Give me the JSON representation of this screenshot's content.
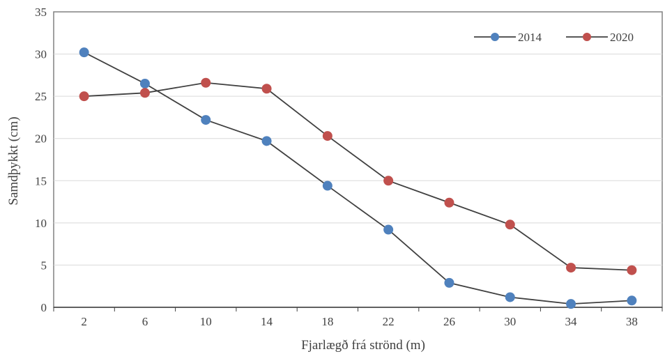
{
  "chart_data": {
    "type": "line",
    "xlabel": "Fjarlægð frá strönd (m)",
    "ylabel": "Samdþykkt (cm)",
    "categories": [
      "2",
      "6",
      "10",
      "14",
      "18",
      "22",
      "26",
      "30",
      "34",
      "38"
    ],
    "ylim": [
      0,
      35
    ],
    "yticks": [
      "0",
      "5",
      "10",
      "15",
      "20",
      "25",
      "30",
      "35"
    ],
    "grid": true,
    "legend_position": "top-right",
    "series": [
      {
        "name": "2014",
        "color": "#4f81bd",
        "values": [
          30.2,
          26.5,
          22.2,
          19.7,
          14.4,
          9.2,
          2.9,
          1.2,
          0.4,
          0.8
        ]
      },
      {
        "name": "2020",
        "color": "#c0504d",
        "values": [
          25.0,
          25.4,
          26.6,
          25.9,
          20.3,
          15.0,
          12.4,
          9.8,
          4.7,
          4.4
        ]
      }
    ],
    "line_color": "#404040",
    "grid_color": "#d9d9d9",
    "axis_color": "#404040"
  }
}
